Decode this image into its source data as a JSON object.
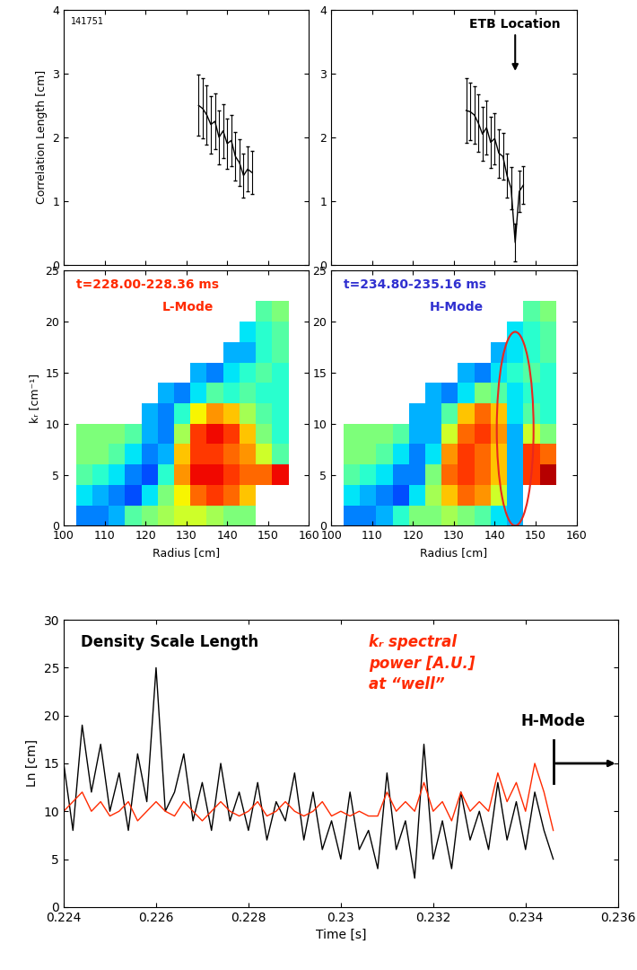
{
  "chart_data": [
    {
      "type": "line",
      "ylabel": "Correlation Length [cm]",
      "x": [
        133,
        134,
        135,
        136,
        137,
        138,
        139,
        140,
        141,
        142,
        143,
        144,
        145,
        146
      ],
      "values": [
        2.5,
        2.45,
        2.35,
        2.2,
        2.25,
        2.0,
        2.1,
        1.9,
        1.95,
        1.7,
        1.6,
        1.4,
        1.5,
        1.45
      ],
      "errors": [
        0.48,
        0.47,
        0.46,
        0.45,
        0.44,
        0.42,
        0.42,
        0.4,
        0.4,
        0.38,
        0.37,
        0.35,
        0.35,
        0.34
      ],
      "color": "#000000",
      "xlim": [
        100,
        160
      ],
      "xticks": [
        100,
        110,
        120,
        130,
        140,
        150,
        160
      ],
      "ylim": [
        0,
        4
      ],
      "yticks": [
        0,
        1,
        2,
        3,
        4
      ],
      "tick_labels": "y",
      "annotations": [
        {
          "text": "141751"
        }
      ]
    },
    {
      "type": "line",
      "x": [
        133,
        134,
        135,
        136,
        137,
        138,
        139,
        140,
        141,
        142,
        143,
        144,
        145,
        146,
        147
      ],
      "values": [
        2.42,
        2.4,
        2.35,
        2.22,
        2.05,
        2.15,
        1.92,
        1.98,
        1.75,
        1.7,
        1.4,
        1.2,
        0.35,
        1.15,
        1.25
      ],
      "errors": [
        0.5,
        0.45,
        0.45,
        0.45,
        0.42,
        0.42,
        0.4,
        0.4,
        0.38,
        0.37,
        0.35,
        0.33,
        0.3,
        0.32,
        0.3
      ],
      "color": "#000000",
      "xlim": [
        100,
        160
      ],
      "xticks": [
        100,
        110,
        120,
        130,
        140,
        150,
        160
      ],
      "ylim": [
        0,
        4
      ],
      "yticks": [
        0,
        1,
        2,
        3,
        4
      ],
      "tick_labels": "y",
      "annotations": [
        {
          "text": "ETB Location",
          "x": 145
        }
      ]
    },
    {
      "type": "heatmap",
      "xlabel": "Radius [cm]",
      "ylabel": "kᵣ [cm⁻¹]",
      "x_edges": [
        103,
        107,
        111,
        115,
        119,
        123,
        127,
        131,
        135,
        139,
        143,
        147,
        151,
        155
      ],
      "y_edges": [
        0,
        2,
        4,
        6,
        8,
        10,
        12,
        14,
        16,
        18,
        20,
        22
      ],
      "cells": [
        [
          0.25,
          0.25,
          0.3,
          0.45,
          0.5,
          0.55,
          0.6,
          0.6,
          0.55,
          0.5,
          0.5,
          null,
          null
        ],
        [
          0.35,
          0.3,
          0.25,
          0.2,
          0.35,
          0.5,
          0.65,
          0.8,
          0.85,
          0.8,
          0.7,
          null,
          null
        ],
        [
          0.45,
          0.4,
          0.35,
          0.25,
          0.2,
          0.4,
          0.75,
          0.9,
          0.9,
          0.85,
          0.8,
          0.8,
          0.9
        ],
        [
          0.5,
          0.5,
          0.45,
          0.35,
          0.25,
          0.3,
          0.7,
          0.85,
          0.85,
          0.8,
          0.75,
          0.6,
          0.45
        ],
        [
          0.5,
          0.5,
          0.5,
          0.45,
          0.3,
          0.25,
          0.55,
          0.85,
          0.9,
          0.85,
          0.7,
          0.5,
          0.4
        ],
        [
          null,
          null,
          null,
          null,
          0.3,
          0.25,
          0.4,
          0.65,
          0.75,
          0.7,
          0.55,
          0.45,
          0.4
        ],
        [
          null,
          null,
          null,
          null,
          null,
          0.3,
          0.25,
          0.35,
          0.45,
          0.4,
          0.45,
          0.4,
          0.4
        ],
        [
          null,
          null,
          null,
          null,
          null,
          null,
          null,
          0.3,
          0.25,
          0.35,
          0.4,
          0.45,
          0.4
        ],
        [
          null,
          null,
          null,
          null,
          null,
          null,
          null,
          null,
          null,
          0.3,
          0.3,
          0.4,
          0.45
        ],
        [
          null,
          null,
          null,
          null,
          null,
          null,
          null,
          null,
          null,
          null,
          0.35,
          0.4,
          0.45
        ],
        [
          null,
          null,
          null,
          null,
          null,
          null,
          null,
          null,
          null,
          null,
          null,
          0.45,
          0.5
        ]
      ],
      "zlim": [
        0,
        1
      ],
      "xlim": [
        100,
        160
      ],
      "xticks": [
        100,
        110,
        120,
        130,
        140,
        150,
        160
      ],
      "ylim": [
        0,
        25
      ],
      "yticks": [
        0,
        5,
        10,
        15,
        20,
        25
      ],
      "annotations": [
        {
          "text": "t=228.00-228.36 ms",
          "color": "#ff2a00"
        },
        {
          "text": "L-Mode",
          "color": "#ff2a00"
        }
      ]
    },
    {
      "type": "heatmap",
      "xlabel": "Radius [cm]",
      "x_edges": [
        103,
        107,
        111,
        115,
        119,
        123,
        127,
        131,
        135,
        139,
        143,
        147,
        151,
        155
      ],
      "y_edges": [
        0,
        2,
        4,
        6,
        8,
        10,
        12,
        14,
        16,
        18,
        20,
        22
      ],
      "cells": [
        [
          0.25,
          0.25,
          0.3,
          0.4,
          0.5,
          0.5,
          0.55,
          0.5,
          0.45,
          0.35,
          0.3,
          null,
          null
        ],
        [
          0.35,
          0.3,
          0.25,
          0.2,
          0.35,
          0.55,
          0.7,
          0.8,
          0.75,
          0.6,
          0.3,
          null,
          null
        ],
        [
          0.45,
          0.4,
          0.35,
          0.25,
          0.25,
          0.5,
          0.8,
          0.85,
          0.8,
          0.7,
          0.3,
          0.85,
          0.95
        ],
        [
          0.5,
          0.5,
          0.45,
          0.35,
          0.25,
          0.35,
          0.75,
          0.85,
          0.8,
          0.7,
          0.3,
          0.85,
          0.8
        ],
        [
          0.5,
          0.5,
          0.5,
          0.45,
          0.3,
          0.3,
          0.6,
          0.8,
          0.85,
          0.75,
          0.3,
          0.6,
          0.5
        ],
        [
          null,
          null,
          null,
          null,
          0.3,
          0.3,
          0.45,
          0.7,
          0.8,
          0.7,
          0.35,
          0.45,
          0.4
        ],
        [
          null,
          null,
          null,
          null,
          null,
          0.3,
          0.25,
          0.35,
          0.5,
          0.45,
          0.35,
          0.4,
          0.4
        ],
        [
          null,
          null,
          null,
          null,
          null,
          null,
          null,
          0.3,
          0.25,
          0.35,
          0.4,
          0.45,
          0.4
        ],
        [
          null,
          null,
          null,
          null,
          null,
          null,
          null,
          null,
          null,
          0.3,
          0.35,
          0.4,
          0.45
        ],
        [
          null,
          null,
          null,
          null,
          null,
          null,
          null,
          null,
          null,
          null,
          0.35,
          0.4,
          0.45
        ],
        [
          null,
          null,
          null,
          null,
          null,
          null,
          null,
          null,
          null,
          null,
          null,
          0.45,
          0.5
        ]
      ],
      "zlim": [
        0,
        1
      ],
      "xlim": [
        100,
        160
      ],
      "xticks": [
        100,
        110,
        120,
        130,
        140,
        150,
        160
      ],
      "ylim": [
        0,
        25
      ],
      "yticks": [
        0,
        5,
        10,
        15,
        20,
        25
      ],
      "annotations": [
        {
          "text": "t=234.80-235.16 ms",
          "color": "#3030d0"
        },
        {
          "text": "H-Mode",
          "color": "#3030d0"
        }
      ]
    },
    {
      "type": "line",
      "xlabel": "Time [s]",
      "ylabel": "Ln [cm]",
      "x": [
        0.224,
        0.2242,
        0.2244,
        0.2246,
        0.2248,
        0.225,
        0.2252,
        0.2254,
        0.2256,
        0.2258,
        0.226,
        0.2262,
        0.2264,
        0.2266,
        0.2268,
        0.227,
        0.2272,
        0.2274,
        0.2276,
        0.2278,
        0.228,
        0.2282,
        0.2284,
        0.2286,
        0.2288,
        0.229,
        0.2292,
        0.2294,
        0.2296,
        0.2298,
        0.23,
        0.2302,
        0.2304,
        0.2306,
        0.2308,
        0.231,
        0.2312,
        0.2314,
        0.2316,
        0.2318,
        0.232,
        0.2322,
        0.2324,
        0.2326,
        0.2328,
        0.233,
        0.2332,
        0.2334,
        0.2336,
        0.2338,
        0.234,
        0.2342,
        0.2344,
        0.2346
      ],
      "series": [
        {
          "name": "Density Scale Length",
          "color": "#000000",
          "values": [
            15,
            8,
            19,
            12,
            17,
            10,
            14,
            8,
            16,
            11,
            25,
            10,
            12,
            16,
            9,
            13,
            8,
            15,
            9,
            12,
            8,
            13,
            7,
            11,
            9,
            14,
            7,
            12,
            6,
            9,
            5,
            12,
            6,
            8,
            4,
            14,
            6,
            9,
            3,
            17,
            5,
            9,
            4,
            12,
            7,
            10,
            6,
            13,
            7,
            11,
            6,
            12,
            8,
            5
          ]
        },
        {
          "name": "kᵣ spectral\npower [A.U.]\nat “well”",
          "color": "#ff2a00",
          "values": [
            10,
            11,
            12,
            10,
            11,
            9.5,
            10,
            11,
            9,
            10,
            11,
            10,
            9.5,
            11,
            10,
            9,
            10,
            11,
            10,
            9.5,
            10,
            11,
            9.5,
            10,
            11,
            10,
            9.5,
            10,
            11,
            9.5,
            10,
            9.5,
            10,
            9.5,
            9.5,
            12,
            10,
            11,
            10,
            13,
            10,
            11,
            9,
            12,
            10,
            11,
            10,
            14,
            11,
            13,
            10,
            15,
            12,
            8
          ]
        }
      ],
      "xlim": [
        0.224,
        0.236
      ],
      "xticks": [
        0.224,
        0.226,
        0.228,
        0.23,
        0.232,
        0.234,
        0.236
      ],
      "ylim": [
        0,
        30
      ],
      "yticks": [
        0,
        5,
        10,
        15,
        20,
        25,
        30
      ],
      "annotations": [
        {
          "text": "H-Mode",
          "x": 0.2346
        }
      ]
    }
  ]
}
